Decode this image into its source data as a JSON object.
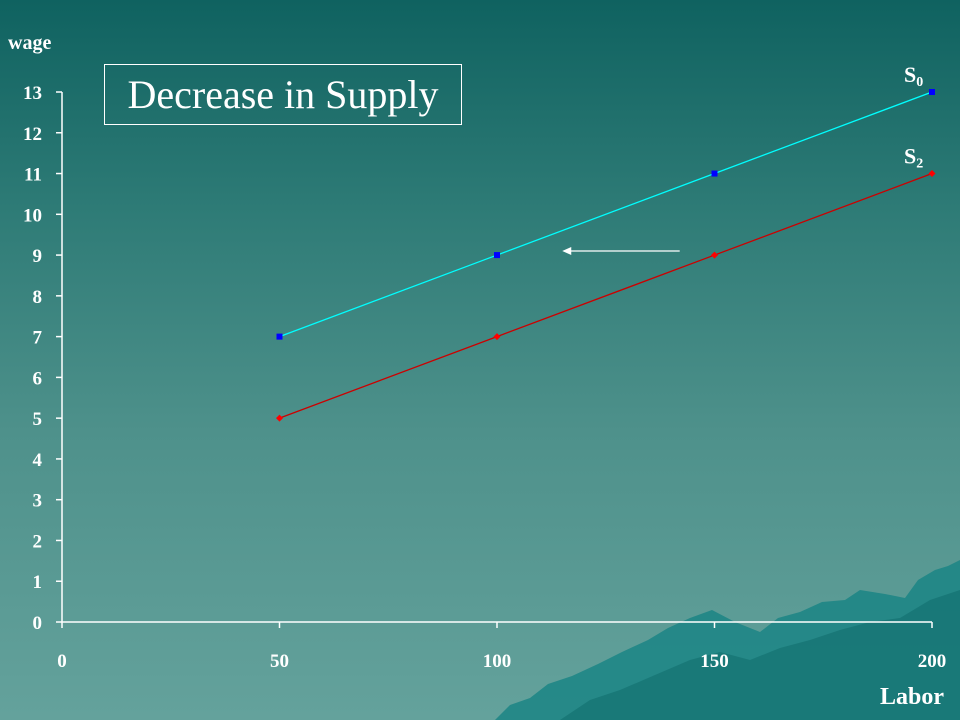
{
  "slide": {
    "background_top": "#0f6260",
    "background_bottom": "#64a29c"
  },
  "title_box": {
    "text": "Decrease in Supply"
  },
  "chart_data": {
    "type": "line",
    "title": "Decrease in Supply",
    "xlabel": "Labor",
    "ylabel": "wage",
    "xlim": [
      0,
      200
    ],
    "ylim": [
      0,
      13
    ],
    "xticks": [
      0,
      50,
      100,
      150,
      200
    ],
    "yticks": [
      0,
      1,
      2,
      3,
      4,
      5,
      6,
      7,
      8,
      9,
      10,
      11,
      12,
      13
    ],
    "grid": false,
    "series": [
      {
        "name_main": "S",
        "name_sub": "0",
        "color": "#00ffff",
        "marker": "square",
        "marker_color": "#0000ff",
        "x": [
          50,
          100,
          150,
          200
        ],
        "y": [
          7,
          9,
          11,
          13
        ]
      },
      {
        "name_main": "S",
        "name_sub": "2",
        "color": "#cc0000",
        "marker": "diamond",
        "marker_color": "#ff0000",
        "x": [
          50,
          100,
          150,
          200
        ],
        "y": [
          5,
          7,
          9,
          11
        ]
      }
    ],
    "annotations": [
      {
        "type": "arrow",
        "direction": "left",
        "color": "#ffffff",
        "from": [
          142,
          9.1
        ],
        "to": [
          115,
          9.1
        ]
      }
    ]
  }
}
